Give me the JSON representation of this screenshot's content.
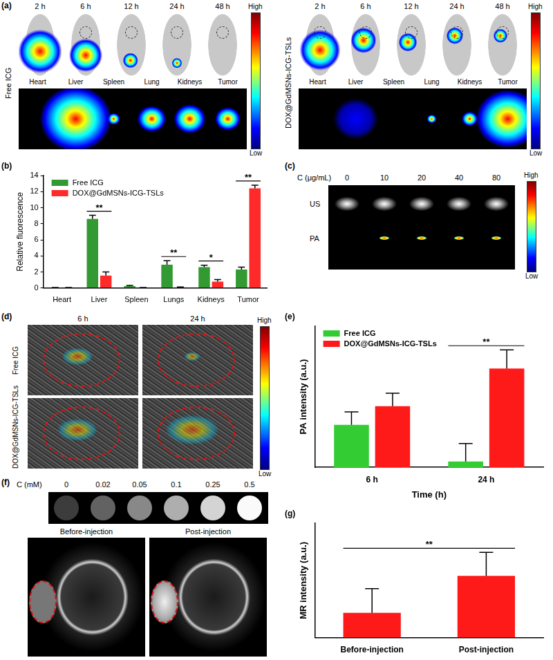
{
  "chart_data": [
    {
      "panel_label": "(b)",
      "type": "bar",
      "categories": [
        "Heart",
        "Liver",
        "Spleen",
        "Lungs",
        "Kidneys",
        "Tumor"
      ],
      "series": [
        {
          "name": "Free ICG",
          "color": "#339933",
          "values": [
            0.05,
            8.6,
            0.25,
            2.9,
            2.6,
            2.3
          ],
          "errors": [
            0.02,
            0.45,
            0.08,
            0.5,
            0.25,
            0.3
          ]
        },
        {
          "name": "DOX@GdMSNs-ICG-TSLs",
          "color": "#ff2b2b",
          "values": [
            0.05,
            1.55,
            0.05,
            0.08,
            0.8,
            12.4
          ],
          "errors": [
            0.02,
            0.45,
            0.02,
            0.05,
            0.25,
            0.4
          ]
        }
      ],
      "y_label": "Relative fluorescence",
      "ylim": [
        0,
        14
      ],
      "yticks": [
        0,
        2,
        4,
        6,
        8,
        10,
        12,
        14
      ],
      "grid": false,
      "legend": "upper left",
      "annotations": [
        {
          "categories": [
            "Liver"
          ],
          "text": "**"
        },
        {
          "categories": [
            "Lungs"
          ],
          "text": "**"
        },
        {
          "categories": [
            "Kidneys"
          ],
          "text": "*"
        },
        {
          "categories": [
            "Tumor"
          ],
          "text": "**"
        }
      ]
    },
    {
      "panel_label": "(e)",
      "type": "bar",
      "categories": [
        "6 h",
        "24 h"
      ],
      "series": [
        {
          "name": "Free ICG",
          "color": "#33cc33",
          "values": [
            75,
            10
          ],
          "errors": [
            23,
            32
          ]
        },
        {
          "name": "DOX@GdMSNs-ICG-TSLs",
          "color": "#ff1a1a",
          "values": [
            108,
            175
          ],
          "errors": [
            23,
            33
          ]
        }
      ],
      "x_label": "Time (h)",
      "y_label": "PA intensity (a.u.)",
      "ylim": [
        0,
        250
      ],
      "tick_labels": "x",
      "grid": false,
      "legend": "upper left",
      "annotations": [
        {
          "categories": [
            "24 h"
          ],
          "text": "**"
        }
      ]
    },
    {
      "panel_label": "(g)",
      "type": "bar",
      "categories": [
        "Before-injection",
        "Post-injection"
      ],
      "values": [
        39,
        97
      ],
      "errors": [
        38,
        37
      ],
      "color": "#ff1a1a",
      "y_label": "MR intensity (a.u.)",
      "ylim": [
        0,
        180
      ],
      "tick_labels": "x",
      "grid": false,
      "annotations": [
        {
          "categories": [
            "Before-injection",
            "Post-injection"
          ],
          "text": "**"
        }
      ]
    }
  ],
  "figure_panels": {
    "a": {
      "panel_label": "(a)",
      "rows": [
        {
          "name": "Free ICG",
          "time_points": [
            "2 h",
            "6 h",
            "12 h",
            "24 h",
            "48 h"
          ],
          "organs": [
            "Heart",
            "Liver",
            "Spleen",
            "Lung",
            "Kidneys",
            "Tumor"
          ]
        },
        {
          "name": "DOX@GdMSNs-ICG-TSLs",
          "time_points": [
            "2 h",
            "6 h",
            "12 h",
            "24 h",
            "48 h"
          ],
          "organs": [
            "Heart",
            "Liver",
            "Spleen",
            "Lung",
            "Kidneys",
            "Tumor"
          ]
        }
      ],
      "colorbar": {
        "high": "High",
        "low": "Low"
      }
    },
    "c": {
      "panel_label": "(c)",
      "concentration_label": "C (μg/mL)",
      "concentrations": [
        0,
        10,
        20,
        40,
        80
      ],
      "rows": [
        "US",
        "PA"
      ],
      "colorbar": {
        "high": "High",
        "low": "Low"
      }
    },
    "d": {
      "panel_label": "(d)",
      "columns": [
        "6 h",
        "24 h"
      ],
      "rows": [
        "Free ICG",
        "DOX@GdMSNs-ICG-TSLs"
      ],
      "colorbar": {
        "high": "High",
        "low": "Low"
      }
    },
    "f": {
      "panel_label": "(f)",
      "concentration_label": "C (mM)",
      "concentrations": [
        0,
        0.02,
        0.05,
        0.1,
        0.25,
        0.5
      ],
      "columns": [
        "Before-injection",
        "Post-injection"
      ]
    }
  }
}
